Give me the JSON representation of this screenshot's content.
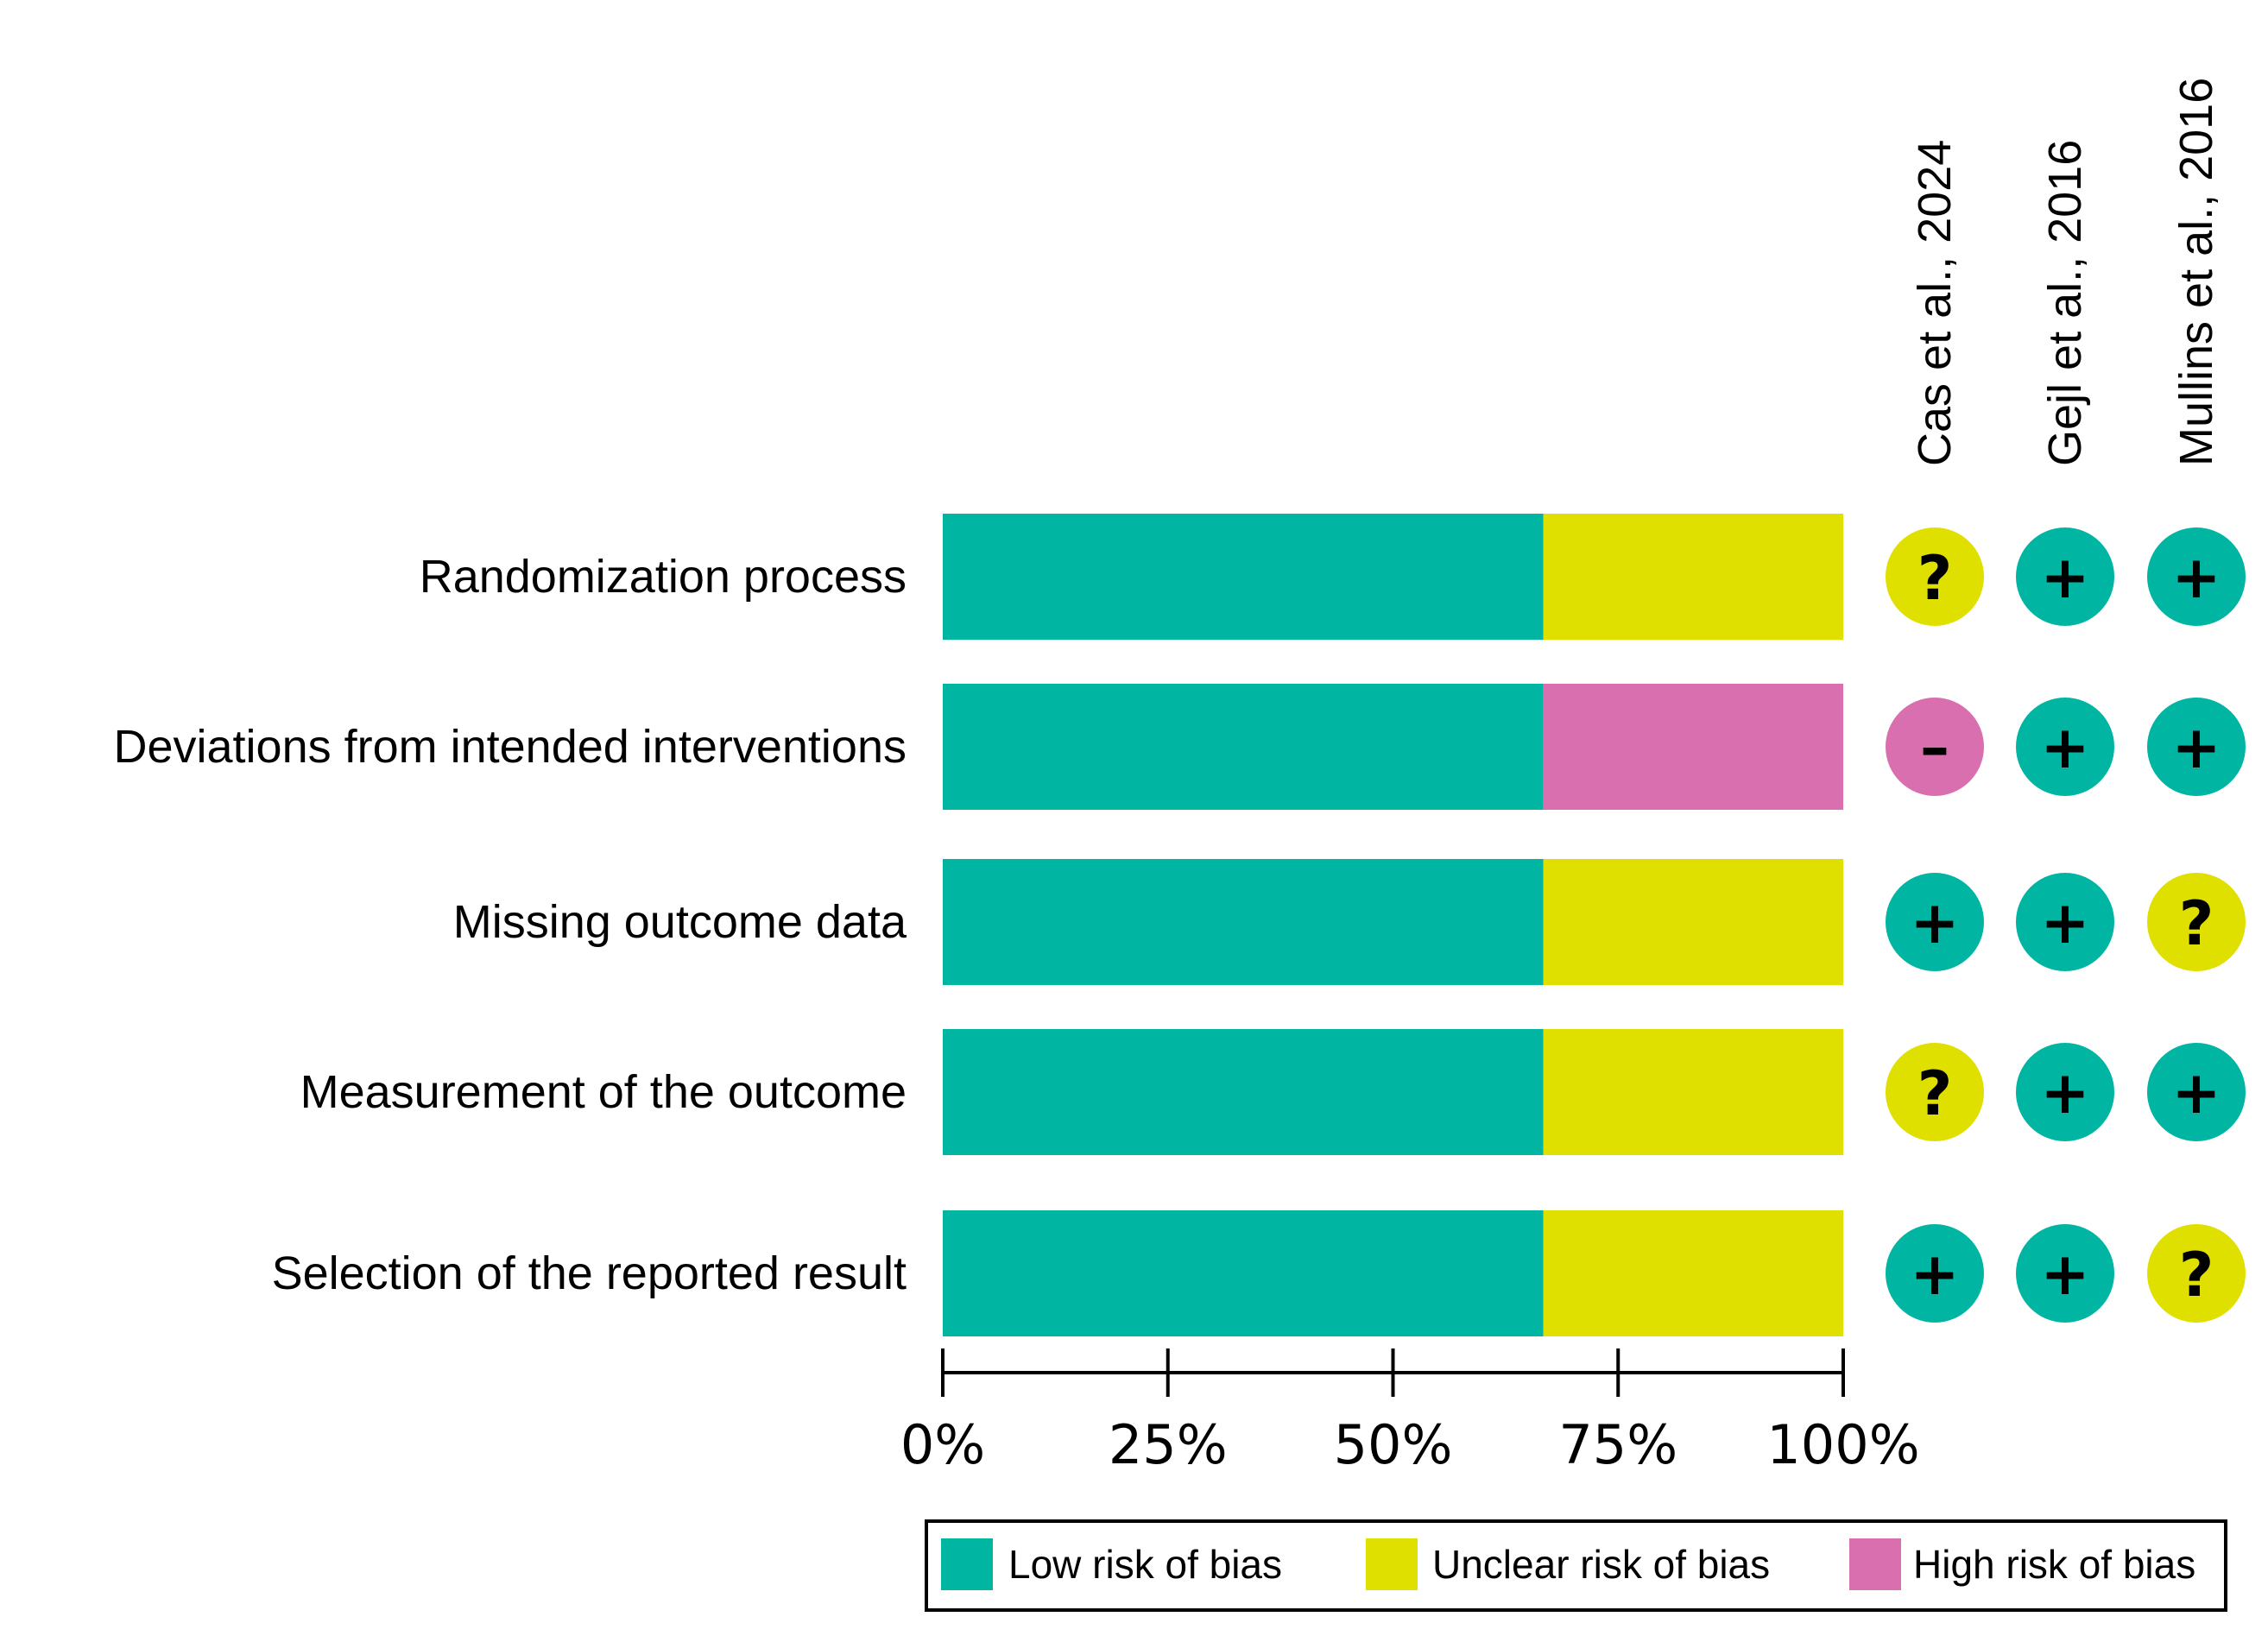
{
  "chart_data": {
    "type": "bar",
    "orientation": "horizontal",
    "stacked": true,
    "title": "",
    "xlabel": "",
    "ylabel": "",
    "xlim": [
      0,
      100
    ],
    "x_ticks": [
      "0%",
      "25%",
      "50%",
      "75%",
      "100%"
    ],
    "x_tick_values": [
      0,
      25,
      50,
      75,
      100
    ],
    "grid": false,
    "legend_position": "bottom-right",
    "categories": [
      "Randomization process",
      "Deviations from intended interventions",
      "Missing outcome data",
      "Measurement of the outcome",
      "Selection of the reported result"
    ],
    "series": [
      {
        "name": "Low risk of bias",
        "key": "low",
        "color": "#00B5A2",
        "values": [
          66.7,
          66.7,
          66.7,
          66.7,
          66.7
        ]
      },
      {
        "name": "Unclear risk of bias",
        "key": "unclear",
        "color": "#E0E000",
        "values": [
          33.3,
          0,
          33.3,
          33.3,
          33.3
        ]
      },
      {
        "name": "High risk of bias",
        "key": "high",
        "color": "#D96FAF",
        "values": [
          0,
          33.3,
          0,
          0,
          0
        ]
      }
    ],
    "studies": [
      "Cas et al., 2024",
      "Gejl et al., 2016",
      "Mullins et al., 2016"
    ],
    "judgements": [
      [
        "unclear",
        "low",
        "low"
      ],
      [
        "high",
        "low",
        "low"
      ],
      [
        "low",
        "low",
        "unclear"
      ],
      [
        "unclear",
        "low",
        "low"
      ],
      [
        "low",
        "low",
        "unclear"
      ]
    ],
    "symbols": {
      "low": "+",
      "unclear": "?",
      "high": "–"
    },
    "legend": [
      "Low risk of bias",
      "Unclear risk of bias",
      "High risk of bias"
    ]
  }
}
